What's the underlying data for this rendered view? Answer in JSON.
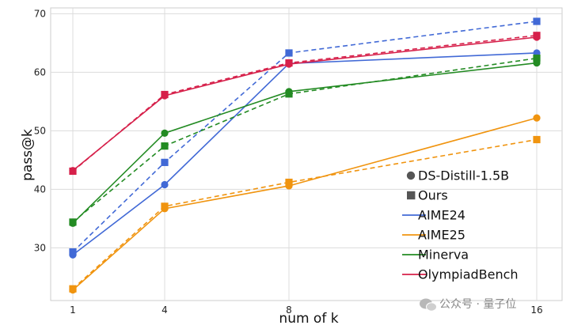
{
  "chart_data": {
    "type": "line",
    "x": [
      1,
      4,
      8,
      16
    ],
    "xticks": [
      "1",
      "4",
      "8",
      "16"
    ],
    "yticks": [
      "30",
      "40",
      "50",
      "60",
      "70"
    ],
    "ylim": [
      21,
      71
    ],
    "xlabel": "num of k",
    "ylabel": "pass@k",
    "grid": true,
    "legend_position": "lower-right",
    "marker_legend": [
      {
        "label": "DS-Distill-1.5B",
        "marker": "circle",
        "line": "solid"
      },
      {
        "label": "Ours",
        "marker": "square",
        "line": "dashed"
      }
    ],
    "series": [
      {
        "name": "AIME24",
        "color": "#4169d6",
        "ds_distill": [
          28.8,
          40.8,
          61.5,
          63.3
        ],
        "ours": [
          29.3,
          44.6,
          63.3,
          68.7
        ]
      },
      {
        "name": "AIME25",
        "color": "#f0940f",
        "ds_distill": [
          22.8,
          36.7,
          40.6,
          52.2
        ],
        "ours": [
          23.0,
          37.1,
          41.2,
          48.5
        ]
      },
      {
        "name": "Minerva",
        "color": "#238b23",
        "ds_distill": [
          34.2,
          49.6,
          56.7,
          61.6
        ],
        "ours": [
          34.4,
          47.4,
          56.3,
          62.4
        ]
      },
      {
        "name": "OlympiadBench",
        "color": "#d6204a",
        "ds_distill": [
          43.2,
          56.0,
          61.4,
          66.0
        ],
        "ours": [
          43.1,
          56.2,
          61.6,
          66.3
        ]
      }
    ]
  },
  "watermark": {
    "text": "公众号 · 量子位",
    "icon": "wechat-icon"
  }
}
